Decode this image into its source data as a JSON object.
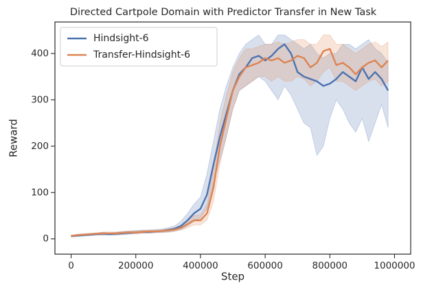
{
  "chart_data": {
    "type": "line",
    "title": "Directed Cartpole Domain with Predictor Transfer in New Task",
    "x_label": "Step",
    "y_label": "Reward",
    "x": [
      0,
      20000,
      40000,
      60000,
      80000,
      100000,
      120000,
      140000,
      160000,
      180000,
      200000,
      220000,
      240000,
      260000,
      280000,
      300000,
      320000,
      340000,
      360000,
      380000,
      400000,
      420000,
      440000,
      460000,
      480000,
      500000,
      520000,
      540000,
      560000,
      580000,
      600000,
      620000,
      640000,
      660000,
      680000,
      700000,
      720000,
      740000,
      760000,
      780000,
      800000,
      820000,
      840000,
      860000,
      880000,
      900000,
      920000,
      940000,
      960000,
      980000
    ],
    "series": [
      {
        "name": "Hindsight-6",
        "color": "#4c72b0",
        "values": [
          6,
          7,
          8,
          9,
          10,
          11,
          10,
          11,
          12,
          13,
          14,
          15,
          15,
          16,
          17,
          19,
          22,
          28,
          40,
          55,
          65,
          95,
          160,
          220,
          270,
          320,
          355,
          370,
          390,
          395,
          385,
          395,
          410,
          420,
          400,
          360,
          350,
          345,
          340,
          330,
          335,
          345,
          360,
          350,
          340,
          370,
          345,
          360,
          345,
          320
        ],
        "lower": [
          4,
          5,
          6,
          7,
          8,
          8,
          8,
          8,
          9,
          10,
          11,
          12,
          12,
          13,
          14,
          15,
          17,
          20,
          28,
          38,
          45,
          65,
          120,
          170,
          220,
          280,
          320,
          330,
          340,
          350,
          340,
          320,
          300,
          330,
          310,
          280,
          250,
          240,
          180,
          200,
          260,
          300,
          280,
          250,
          230,
          260,
          210,
          250,
          290,
          240
        ],
        "upper": [
          8,
          10,
          11,
          12,
          13,
          14,
          13,
          14,
          16,
          17,
          18,
          19,
          19,
          20,
          21,
          24,
          28,
          38,
          55,
          75,
          90,
          140,
          210,
          280,
          330,
          370,
          400,
          420,
          430,
          440,
          420,
          420,
          440,
          440,
          430,
          420,
          410,
          420,
          400,
          390,
          400,
          400,
          420,
          420,
          410,
          420,
          430,
          410,
          400,
          380
        ]
      },
      {
        "name": "Transfer-Hindsight-6",
        "color": "#dd8452",
        "values": [
          6,
          8,
          9,
          10,
          11,
          12,
          12,
          12,
          13,
          14,
          14,
          15,
          16,
          16,
          17,
          18,
          20,
          24,
          32,
          40,
          40,
          55,
          110,
          200,
          260,
          320,
          350,
          370,
          375,
          380,
          390,
          385,
          390,
          380,
          385,
          395,
          390,
          370,
          380,
          405,
          410,
          375,
          380,
          370,
          355,
          370,
          380,
          385,
          370,
          385
        ],
        "lower": [
          4,
          6,
          7,
          8,
          9,
          9,
          9,
          9,
          10,
          11,
          11,
          12,
          13,
          13,
          14,
          14,
          16,
          19,
          24,
          30,
          30,
          40,
          80,
          160,
          220,
          280,
          320,
          330,
          340,
          350,
          350,
          340,
          350,
          340,
          340,
          350,
          345,
          330,
          340,
          360,
          370,
          340,
          340,
          330,
          320,
          330,
          340,
          345,
          330,
          340
        ],
        "upper": [
          8,
          10,
          11,
          12,
          13,
          15,
          15,
          15,
          16,
          17,
          17,
          18,
          19,
          19,
          20,
          22,
          24,
          29,
          40,
          50,
          52,
          75,
          150,
          250,
          310,
          360,
          390,
          410,
          410,
          415,
          420,
          420,
          425,
          420,
          425,
          430,
          430,
          420,
          420,
          440,
          440,
          420,
          420,
          410,
          400,
          410,
          420,
          425,
          415,
          425
        ]
      }
    ],
    "xlim": [
      -50000,
      1050000
    ],
    "xticks": [
      0,
      200000,
      400000,
      600000,
      800000,
      1000000
    ],
    "ylim": [
      -33,
      468
    ],
    "yticks": [
      0,
      100,
      200,
      300,
      400
    ],
    "legend": "upper left",
    "grid": false
  }
}
